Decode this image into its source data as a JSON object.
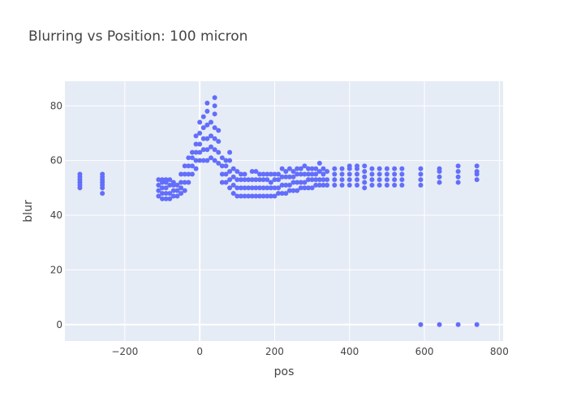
{
  "chart_data": {
    "type": "scatter",
    "title": "Blurring vs Position: 100 micron",
    "xlabel": "pos",
    "ylabel": "blur",
    "xlim": [
      -360,
      810
    ],
    "ylim": [
      -6,
      89
    ],
    "xticks": [
      -200,
      0,
      200,
      400,
      600,
      800
    ],
    "yticks": [
      0,
      20,
      40,
      60,
      80
    ],
    "xtick_labels": [
      "−200",
      "0",
      "200",
      "400",
      "600",
      "800"
    ],
    "ytick_labels": [
      "0",
      "20",
      "40",
      "60",
      "80"
    ],
    "grid": true,
    "marker_color": "#636efa",
    "background_color": "#e5ecf6",
    "series": [
      {
        "points": [
          [
            -320,
            50
          ],
          [
            -320,
            51
          ],
          [
            -320,
            52
          ],
          [
            -320,
            53
          ],
          [
            -320,
            54
          ],
          [
            -320,
            55
          ],
          [
            -260,
            48
          ],
          [
            -260,
            50
          ],
          [
            -260,
            51
          ],
          [
            -260,
            52
          ],
          [
            -260,
            53
          ],
          [
            -260,
            54
          ],
          [
            -260,
            55
          ],
          [
            -110,
            47
          ],
          [
            -110,
            49
          ],
          [
            -110,
            51
          ],
          [
            -110,
            53
          ],
          [
            -100,
            46
          ],
          [
            -100,
            48
          ],
          [
            -100,
            50
          ],
          [
            -100,
            52
          ],
          [
            -100,
            53
          ],
          [
            -90,
            46
          ],
          [
            -90,
            48
          ],
          [
            -90,
            50
          ],
          [
            -90,
            52
          ],
          [
            -90,
            53
          ],
          [
            -80,
            46
          ],
          [
            -80,
            48
          ],
          [
            -80,
            51
          ],
          [
            -80,
            53
          ],
          [
            -70,
            47
          ],
          [
            -70,
            49
          ],
          [
            -70,
            51
          ],
          [
            -70,
            52
          ],
          [
            -60,
            47
          ],
          [
            -60,
            49
          ],
          [
            -60,
            51
          ],
          [
            -50,
            48
          ],
          [
            -50,
            50
          ],
          [
            -50,
            52
          ],
          [
            -50,
            55
          ],
          [
            -40,
            49
          ],
          [
            -40,
            52
          ],
          [
            -40,
            55
          ],
          [
            -40,
            58
          ],
          [
            -30,
            52
          ],
          [
            -30,
            55
          ],
          [
            -30,
            58
          ],
          [
            -30,
            61
          ],
          [
            -20,
            55
          ],
          [
            -20,
            58
          ],
          [
            -20,
            61
          ],
          [
            -20,
            63
          ],
          [
            -10,
            57
          ],
          [
            -10,
            60
          ],
          [
            -10,
            63
          ],
          [
            -10,
            66
          ],
          [
            -10,
            69
          ],
          [
            0,
            60
          ],
          [
            0,
            63
          ],
          [
            0,
            66
          ],
          [
            0,
            70
          ],
          [
            0,
            74
          ],
          [
            10,
            60
          ],
          [
            10,
            64
          ],
          [
            10,
            68
          ],
          [
            10,
            72
          ],
          [
            10,
            76
          ],
          [
            20,
            60
          ],
          [
            20,
            64
          ],
          [
            20,
            68
          ],
          [
            20,
            73
          ],
          [
            20,
            78
          ],
          [
            20,
            81
          ],
          [
            30,
            61
          ],
          [
            30,
            65
          ],
          [
            30,
            69
          ],
          [
            30,
            74
          ],
          [
            40,
            60
          ],
          [
            40,
            64
          ],
          [
            40,
            68
          ],
          [
            40,
            72
          ],
          [
            40,
            77
          ],
          [
            40,
            80
          ],
          [
            40,
            83
          ],
          [
            50,
            59
          ],
          [
            50,
            63
          ],
          [
            50,
            67
          ],
          [
            50,
            71
          ],
          [
            60,
            52
          ],
          [
            60,
            55
          ],
          [
            60,
            58
          ],
          [
            60,
            61
          ],
          [
            70,
            52
          ],
          [
            70,
            55
          ],
          [
            70,
            58
          ],
          [
            70,
            60
          ],
          [
            80,
            50
          ],
          [
            80,
            53
          ],
          [
            80,
            56
          ],
          [
            80,
            60
          ],
          [
            80,
            63
          ],
          [
            90,
            48
          ],
          [
            90,
            51
          ],
          [
            90,
            54
          ],
          [
            90,
            57
          ],
          [
            100,
            47
          ],
          [
            100,
            50
          ],
          [
            100,
            53
          ],
          [
            100,
            56
          ],
          [
            110,
            47
          ],
          [
            110,
            50
          ],
          [
            110,
            53
          ],
          [
            110,
            55
          ],
          [
            120,
            47
          ],
          [
            120,
            50
          ],
          [
            120,
            53
          ],
          [
            120,
            55
          ],
          [
            130,
            47
          ],
          [
            130,
            50
          ],
          [
            130,
            53
          ],
          [
            140,
            47
          ],
          [
            140,
            50
          ],
          [
            140,
            53
          ],
          [
            140,
            56
          ],
          [
            150,
            47
          ],
          [
            150,
            50
          ],
          [
            150,
            53
          ],
          [
            150,
            56
          ],
          [
            160,
            47
          ],
          [
            160,
            50
          ],
          [
            160,
            53
          ],
          [
            160,
            55
          ],
          [
            170,
            47
          ],
          [
            170,
            50
          ],
          [
            170,
            53
          ],
          [
            170,
            55
          ],
          [
            180,
            47
          ],
          [
            180,
            50
          ],
          [
            180,
            53
          ],
          [
            180,
            55
          ],
          [
            190,
            47
          ],
          [
            190,
            50
          ],
          [
            190,
            52
          ],
          [
            190,
            55
          ],
          [
            200,
            47
          ],
          [
            200,
            50
          ],
          [
            200,
            53
          ],
          [
            200,
            55
          ],
          [
            210,
            48
          ],
          [
            210,
            50
          ],
          [
            210,
            53
          ],
          [
            210,
            55
          ],
          [
            220,
            48
          ],
          [
            220,
            51
          ],
          [
            220,
            54
          ],
          [
            220,
            57
          ],
          [
            230,
            48
          ],
          [
            230,
            51
          ],
          [
            230,
            54
          ],
          [
            230,
            56
          ],
          [
            240,
            49
          ],
          [
            240,
            51
          ],
          [
            240,
            54
          ],
          [
            240,
            57
          ],
          [
            250,
            49
          ],
          [
            250,
            52
          ],
          [
            250,
            54
          ],
          [
            250,
            56
          ],
          [
            260,
            49
          ],
          [
            260,
            52
          ],
          [
            260,
            55
          ],
          [
            260,
            57
          ],
          [
            270,
            50
          ],
          [
            270,
            52
          ],
          [
            270,
            55
          ],
          [
            270,
            57
          ],
          [
            280,
            50
          ],
          [
            280,
            52
          ],
          [
            280,
            55
          ],
          [
            280,
            58
          ],
          [
            290,
            50
          ],
          [
            290,
            53
          ],
          [
            290,
            55
          ],
          [
            290,
            57
          ],
          [
            300,
            50
          ],
          [
            300,
            53
          ],
          [
            300,
            55
          ],
          [
            300,
            57
          ],
          [
            310,
            51
          ],
          [
            310,
            53
          ],
          [
            310,
            55
          ],
          [
            310,
            57
          ],
          [
            320,
            51
          ],
          [
            320,
            53
          ],
          [
            320,
            56
          ],
          [
            320,
            59
          ],
          [
            330,
            51
          ],
          [
            330,
            53
          ],
          [
            330,
            55
          ],
          [
            330,
            57
          ],
          [
            340,
            51
          ],
          [
            340,
            53
          ],
          [
            340,
            56
          ],
          [
            360,
            51
          ],
          [
            360,
            53
          ],
          [
            360,
            55
          ],
          [
            360,
            57
          ],
          [
            380,
            51
          ],
          [
            380,
            53
          ],
          [
            380,
            55
          ],
          [
            380,
            57
          ],
          [
            400,
            51
          ],
          [
            400,
            53
          ],
          [
            400,
            55
          ],
          [
            400,
            57
          ],
          [
            400,
            58
          ],
          [
            420,
            51
          ],
          [
            420,
            53
          ],
          [
            420,
            55
          ],
          [
            420,
            57
          ],
          [
            420,
            58
          ],
          [
            440,
            50
          ],
          [
            440,
            52
          ],
          [
            440,
            54
          ],
          [
            440,
            56
          ],
          [
            440,
            58
          ],
          [
            460,
            51
          ],
          [
            460,
            53
          ],
          [
            460,
            55
          ],
          [
            460,
            57
          ],
          [
            480,
            51
          ],
          [
            480,
            53
          ],
          [
            480,
            55
          ],
          [
            480,
            57
          ],
          [
            500,
            51
          ],
          [
            500,
            53
          ],
          [
            500,
            55
          ],
          [
            500,
            57
          ],
          [
            520,
            51
          ],
          [
            520,
            53
          ],
          [
            520,
            55
          ],
          [
            520,
            57
          ],
          [
            540,
            51
          ],
          [
            540,
            53
          ],
          [
            540,
            55
          ],
          [
            540,
            57
          ],
          [
            590,
            51
          ],
          [
            590,
            53
          ],
          [
            590,
            55
          ],
          [
            590,
            57
          ],
          [
            640,
            52
          ],
          [
            640,
            54
          ],
          [
            640,
            56
          ],
          [
            640,
            57
          ],
          [
            690,
            52
          ],
          [
            690,
            54
          ],
          [
            690,
            56
          ],
          [
            690,
            58
          ],
          [
            740,
            53
          ],
          [
            740,
            55
          ],
          [
            740,
            56
          ],
          [
            740,
            58
          ],
          [
            590,
            0
          ],
          [
            640,
            0
          ],
          [
            690,
            0
          ],
          [
            740,
            0
          ]
        ]
      }
    ]
  }
}
